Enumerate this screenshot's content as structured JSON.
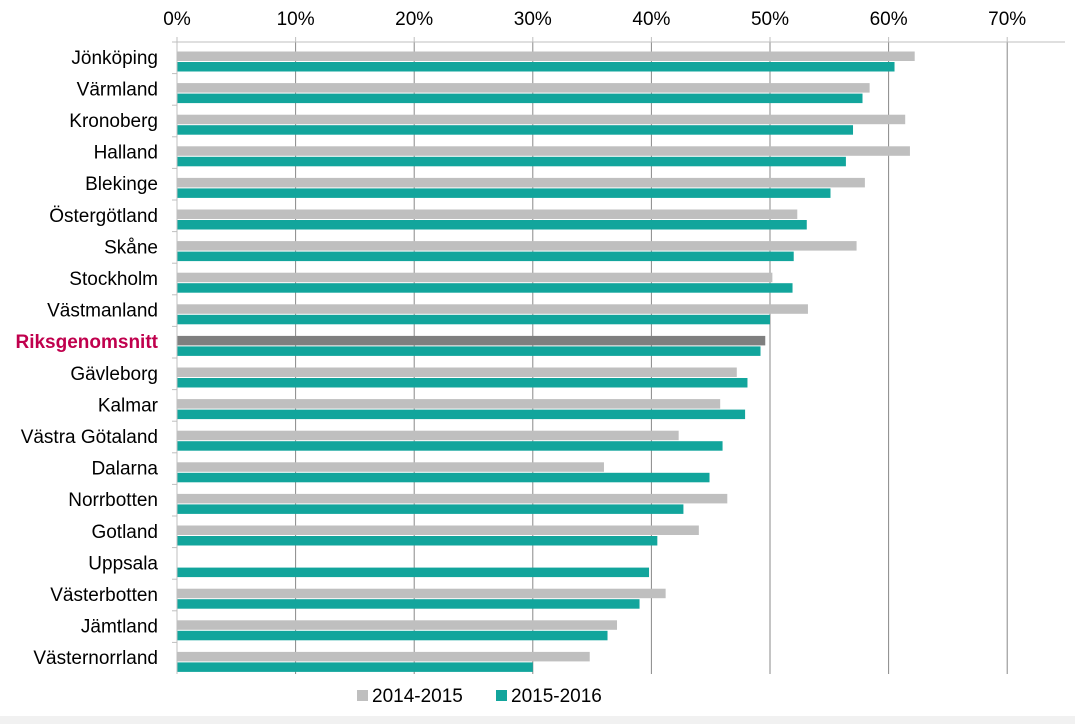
{
  "chart_data": {
    "type": "bar",
    "orientation": "horizontal",
    "title": "",
    "xlabel": "",
    "ylabel": "",
    "xlim": [
      0,
      75
    ],
    "x_ticks": [
      "0%",
      "10%",
      "20%",
      "30%",
      "40%",
      "50%",
      "60%",
      "70%"
    ],
    "x_tick_values": [
      0,
      10,
      20,
      30,
      40,
      50,
      60,
      70
    ],
    "grid": true,
    "legend_position": "bottom",
    "categories": [
      "Jönköping",
      "Värmland",
      "Kronoberg",
      "Halland",
      "Blekinge",
      "Östergötland",
      "Skåne",
      "Stockholm",
      "Västmanland",
      "Riksgenomsnitt",
      "Gävleborg",
      "Kalmar",
      "Västra Götaland",
      "Dalarna",
      "Norrbotten",
      "Gotland",
      "Uppsala",
      "Västerbotten",
      "Jämtland",
      "Västernorrland"
    ],
    "highlight_category": "Riksgenomsnitt",
    "highlight_label_color": "#c0004d",
    "highlight_bar_color": "#7f7f7f",
    "series": [
      {
        "name": "2014-2015",
        "color": "#bfbfbf",
        "values": [
          62.2,
          58.4,
          61.4,
          61.8,
          58.0,
          52.3,
          57.3,
          50.2,
          53.2,
          49.6,
          47.2,
          45.8,
          42.3,
          36.0,
          46.4,
          44.0,
          null,
          41.2,
          37.1,
          34.8
        ]
      },
      {
        "name": "2015-2016",
        "color": "#12a59c",
        "values": [
          60.5,
          57.8,
          57.0,
          56.4,
          55.1,
          53.1,
          52.0,
          51.9,
          50.0,
          49.2,
          48.1,
          47.9,
          46.0,
          44.9,
          42.7,
          40.5,
          39.8,
          39.0,
          36.3,
          30.0
        ]
      }
    ]
  }
}
